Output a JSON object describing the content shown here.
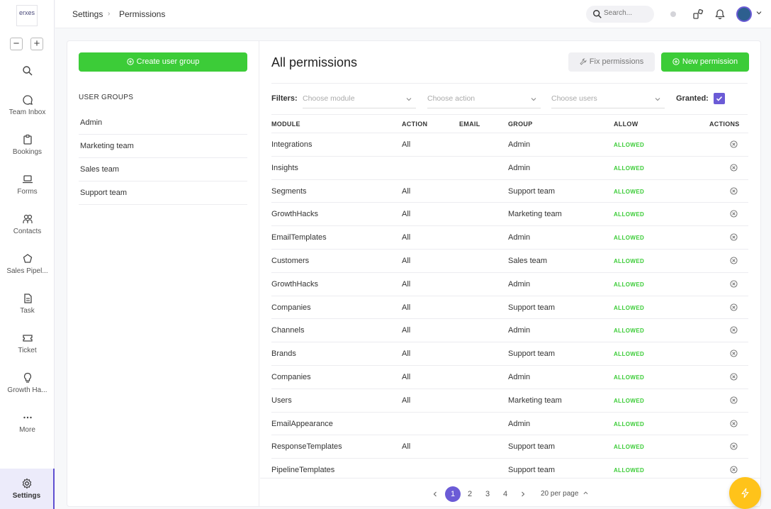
{
  "app": {
    "logo_text": "erxes"
  },
  "nav": {
    "zoom_out": "−",
    "zoom_in": "+",
    "items": [
      {
        "icon": "search-icon",
        "label": ""
      },
      {
        "icon": "chat-bubble-icon",
        "label": "Team Inbox"
      },
      {
        "icon": "clipboard-icon",
        "label": "Bookings"
      },
      {
        "icon": "laptop-icon",
        "label": "Forms"
      },
      {
        "icon": "users-icon",
        "label": "Contacts"
      },
      {
        "icon": "pipeline-icon",
        "label": "Sales Pipel..."
      },
      {
        "icon": "task-icon",
        "label": "Task"
      },
      {
        "icon": "ticket-icon",
        "label": "Ticket"
      },
      {
        "icon": "lightbulb-icon",
        "label": "Growth Ha..."
      },
      {
        "icon": "more-icon",
        "label": "More"
      }
    ],
    "settings_label": "Settings"
  },
  "header": {
    "breadcrumb": [
      "Settings",
      "Permissions"
    ],
    "search_placeholder": "Search..."
  },
  "left": {
    "create_button": "Create user group",
    "groups_title": "USER GROUPS",
    "groups": [
      "Admin",
      "Marketing team",
      "Sales team",
      "Support team"
    ]
  },
  "main": {
    "title": "All permissions",
    "fix_button": "Fix permissions",
    "new_button": "New permission",
    "filters_label": "Filters:",
    "module_placeholder": "Choose module",
    "action_placeholder": "Choose action",
    "users_placeholder": "Choose users",
    "granted_label": "Granted:",
    "granted_checked": true,
    "columns": [
      "MODULE",
      "ACTION",
      "EMAIL",
      "GROUP",
      "ALLOW",
      "ACTIONS"
    ],
    "rows": [
      {
        "module": "Integrations",
        "action": "All",
        "email": "",
        "group": "Admin",
        "allow": "ALLOWED"
      },
      {
        "module": "Insights",
        "action": "",
        "email": "",
        "group": "Admin",
        "allow": "ALLOWED"
      },
      {
        "module": "Segments",
        "action": "All",
        "email": "",
        "group": "Support team",
        "allow": "ALLOWED"
      },
      {
        "module": "GrowthHacks",
        "action": "All",
        "email": "",
        "group": "Marketing team",
        "allow": "ALLOWED"
      },
      {
        "module": "EmailTemplates",
        "action": "All",
        "email": "",
        "group": "Admin",
        "allow": "ALLOWED"
      },
      {
        "module": "Customers",
        "action": "All",
        "email": "",
        "group": "Sales team",
        "allow": "ALLOWED"
      },
      {
        "module": "GrowthHacks",
        "action": "All",
        "email": "",
        "group": "Admin",
        "allow": "ALLOWED"
      },
      {
        "module": "Companies",
        "action": "All",
        "email": "",
        "group": "Support team",
        "allow": "ALLOWED"
      },
      {
        "module": "Channels",
        "action": "All",
        "email": "",
        "group": "Admin",
        "allow": "ALLOWED"
      },
      {
        "module": "Brands",
        "action": "All",
        "email": "",
        "group": "Support team",
        "allow": "ALLOWED"
      },
      {
        "module": "Companies",
        "action": "All",
        "email": "",
        "group": "Admin",
        "allow": "ALLOWED"
      },
      {
        "module": "Users",
        "action": "All",
        "email": "",
        "group": "Marketing team",
        "allow": "ALLOWED"
      },
      {
        "module": "EmailAppearance",
        "action": "",
        "email": "",
        "group": "Admin",
        "allow": "ALLOWED"
      },
      {
        "module": "ResponseTemplates",
        "action": "All",
        "email": "",
        "group": "Support team",
        "allow": "ALLOWED"
      },
      {
        "module": "PipelineTemplates",
        "action": "",
        "email": "",
        "group": "Support team",
        "allow": "ALLOWED"
      }
    ]
  },
  "pagination": {
    "pages": [
      "1",
      "2",
      "3",
      "4"
    ],
    "current": "1",
    "per_page": "20 per page"
  },
  "colors": {
    "accent": "#6b5bd6",
    "green": "#3ccc38",
    "fab": "#ffc31a"
  }
}
